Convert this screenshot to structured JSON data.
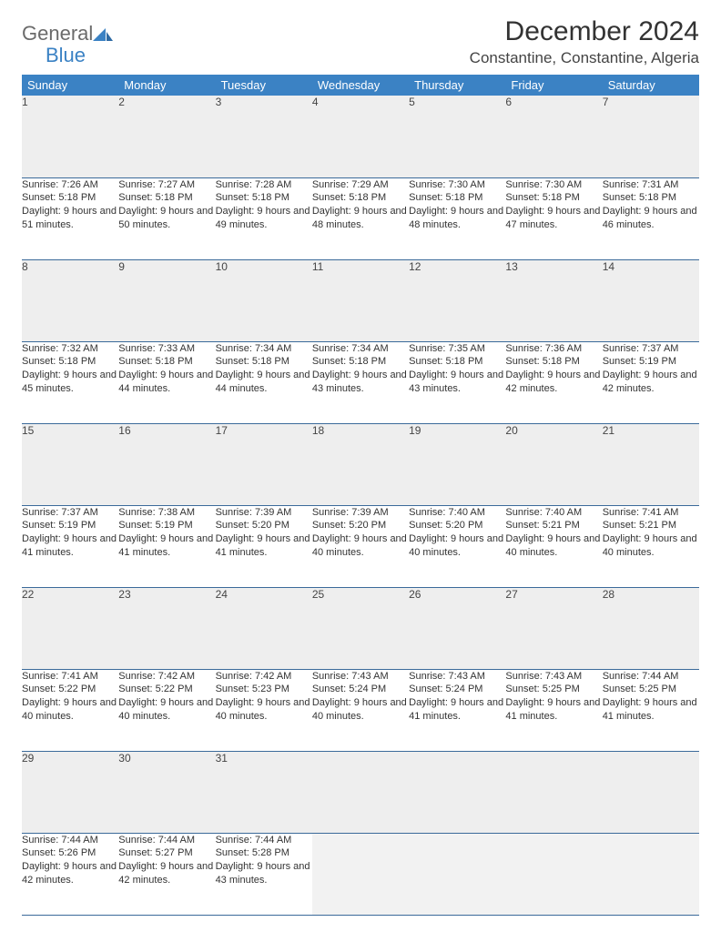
{
  "logo": {
    "text1": "General",
    "text2": "Blue"
  },
  "title": "December 2024",
  "location": "Constantine, Constantine, Algeria",
  "colors": {
    "header_bg": "#3b82c4",
    "header_fg": "#ffffff",
    "daynum_bg": "#eeeeee",
    "rule": "#3b6a9a",
    "logo_gray": "#6b6b6b",
    "logo_blue": "#3b82c4"
  },
  "weekdays": [
    "Sunday",
    "Monday",
    "Tuesday",
    "Wednesday",
    "Thursday",
    "Friday",
    "Saturday"
  ],
  "weeks": [
    [
      {
        "n": "1",
        "sunrise": "7:26 AM",
        "sunset": "5:18 PM",
        "dl": "9 hours and 51 minutes."
      },
      {
        "n": "2",
        "sunrise": "7:27 AM",
        "sunset": "5:18 PM",
        "dl": "9 hours and 50 minutes."
      },
      {
        "n": "3",
        "sunrise": "7:28 AM",
        "sunset": "5:18 PM",
        "dl": "9 hours and 49 minutes."
      },
      {
        "n": "4",
        "sunrise": "7:29 AM",
        "sunset": "5:18 PM",
        "dl": "9 hours and 48 minutes."
      },
      {
        "n": "5",
        "sunrise": "7:30 AM",
        "sunset": "5:18 PM",
        "dl": "9 hours and 48 minutes."
      },
      {
        "n": "6",
        "sunrise": "7:30 AM",
        "sunset": "5:18 PM",
        "dl": "9 hours and 47 minutes."
      },
      {
        "n": "7",
        "sunrise": "7:31 AM",
        "sunset": "5:18 PM",
        "dl": "9 hours and 46 minutes."
      }
    ],
    [
      {
        "n": "8",
        "sunrise": "7:32 AM",
        "sunset": "5:18 PM",
        "dl": "9 hours and 45 minutes."
      },
      {
        "n": "9",
        "sunrise": "7:33 AM",
        "sunset": "5:18 PM",
        "dl": "9 hours and 44 minutes."
      },
      {
        "n": "10",
        "sunrise": "7:34 AM",
        "sunset": "5:18 PM",
        "dl": "9 hours and 44 minutes."
      },
      {
        "n": "11",
        "sunrise": "7:34 AM",
        "sunset": "5:18 PM",
        "dl": "9 hours and 43 minutes."
      },
      {
        "n": "12",
        "sunrise": "7:35 AM",
        "sunset": "5:18 PM",
        "dl": "9 hours and 43 minutes."
      },
      {
        "n": "13",
        "sunrise": "7:36 AM",
        "sunset": "5:18 PM",
        "dl": "9 hours and 42 minutes."
      },
      {
        "n": "14",
        "sunrise": "7:37 AM",
        "sunset": "5:19 PM",
        "dl": "9 hours and 42 minutes."
      }
    ],
    [
      {
        "n": "15",
        "sunrise": "7:37 AM",
        "sunset": "5:19 PM",
        "dl": "9 hours and 41 minutes."
      },
      {
        "n": "16",
        "sunrise": "7:38 AM",
        "sunset": "5:19 PM",
        "dl": "9 hours and 41 minutes."
      },
      {
        "n": "17",
        "sunrise": "7:39 AM",
        "sunset": "5:20 PM",
        "dl": "9 hours and 41 minutes."
      },
      {
        "n": "18",
        "sunrise": "7:39 AM",
        "sunset": "5:20 PM",
        "dl": "9 hours and 40 minutes."
      },
      {
        "n": "19",
        "sunrise": "7:40 AM",
        "sunset": "5:20 PM",
        "dl": "9 hours and 40 minutes."
      },
      {
        "n": "20",
        "sunrise": "7:40 AM",
        "sunset": "5:21 PM",
        "dl": "9 hours and 40 minutes."
      },
      {
        "n": "21",
        "sunrise": "7:41 AM",
        "sunset": "5:21 PM",
        "dl": "9 hours and 40 minutes."
      }
    ],
    [
      {
        "n": "22",
        "sunrise": "7:41 AM",
        "sunset": "5:22 PM",
        "dl": "9 hours and 40 minutes."
      },
      {
        "n": "23",
        "sunrise": "7:42 AM",
        "sunset": "5:22 PM",
        "dl": "9 hours and 40 minutes."
      },
      {
        "n": "24",
        "sunrise": "7:42 AM",
        "sunset": "5:23 PM",
        "dl": "9 hours and 40 minutes."
      },
      {
        "n": "25",
        "sunrise": "7:43 AM",
        "sunset": "5:24 PM",
        "dl": "9 hours and 40 minutes."
      },
      {
        "n": "26",
        "sunrise": "7:43 AM",
        "sunset": "5:24 PM",
        "dl": "9 hours and 41 minutes."
      },
      {
        "n": "27",
        "sunrise": "7:43 AM",
        "sunset": "5:25 PM",
        "dl": "9 hours and 41 minutes."
      },
      {
        "n": "28",
        "sunrise": "7:44 AM",
        "sunset": "5:25 PM",
        "dl": "9 hours and 41 minutes."
      }
    ],
    [
      {
        "n": "29",
        "sunrise": "7:44 AM",
        "sunset": "5:26 PM",
        "dl": "9 hours and 42 minutes."
      },
      {
        "n": "30",
        "sunrise": "7:44 AM",
        "sunset": "5:27 PM",
        "dl": "9 hours and 42 minutes."
      },
      {
        "n": "31",
        "sunrise": "7:44 AM",
        "sunset": "5:28 PM",
        "dl": "9 hours and 43 minutes."
      },
      null,
      null,
      null,
      null
    ]
  ],
  "labels": {
    "sunrise": "Sunrise: ",
    "sunset": "Sunset: ",
    "daylight": "Daylight: "
  }
}
